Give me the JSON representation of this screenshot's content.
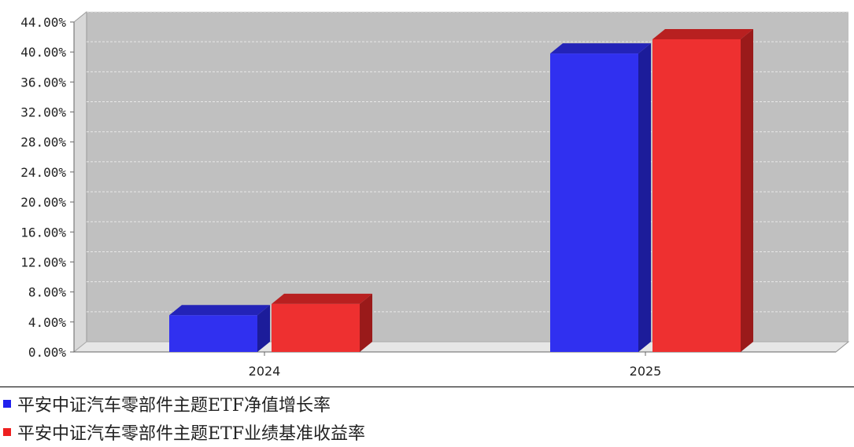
{
  "chart_data": {
    "type": "bar",
    "categories": [
      "2024",
      "2025"
    ],
    "series": [
      {
        "name": "平安中证汽车零部件主题ETF净值增长率",
        "values": [
          4.9,
          39.8
        ],
        "color": "#3030f0",
        "top_color": "#2323b8",
        "side_color": "#1c1c9a"
      },
      {
        "name": "平安中证汽车零部件主题ETF业绩基准收益率",
        "values": [
          6.4,
          41.7
        ],
        "color": "#ee3030",
        "top_color": "#b82020",
        "side_color": "#9a1a1a"
      }
    ],
    "yticks": [
      "0.00%",
      "4.00%",
      "8.00%",
      "12.00%",
      "16.00%",
      "20.00%",
      "24.00%",
      "28.00%",
      "32.00%",
      "36.00%",
      "40.00%",
      "44.00%"
    ],
    "ylim": [
      0,
      44
    ],
    "grid": true,
    "legend_position": "bottom-left",
    "plot_background": "#c0c0c0"
  }
}
